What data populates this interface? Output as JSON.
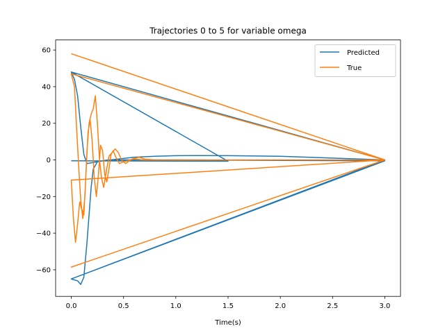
{
  "chart_data": {
    "type": "line",
    "title": "Trajectories 0 to 5 for variable omega",
    "xlabel": "Time(s)",
    "ylabel": "",
    "xlim": [
      -0.15,
      3.15
    ],
    "ylim": [
      -74.5,
      65.5
    ],
    "xticks": [
      0.0,
      0.5,
      1.0,
      1.5,
      2.0,
      2.5,
      3.0
    ],
    "xtick_labels": [
      "0.0",
      "0.5",
      "1.0",
      "1.5",
      "2.0",
      "2.5",
      "3.0"
    ],
    "yticks": [
      -60,
      -40,
      -20,
      0,
      20,
      40,
      60
    ],
    "ytick_labels": [
      "−60",
      "−40",
      "−20",
      "0",
      "20",
      "40",
      "60"
    ],
    "grid": false,
    "legend_position": "top-right",
    "colors": {
      "Predicted": "#1f77b4",
      "True": "#ff7f0e"
    },
    "series": [
      {
        "name": "Predicted",
        "color": "#1f77b4",
        "points": [
          [
            0.0,
            -0.5
          ],
          [
            1.5,
            -0.7
          ],
          [
            0.0,
            48.0
          ],
          [
            0.03,
            44.0
          ],
          [
            0.06,
            35.0
          ],
          [
            0.09,
            18.0
          ],
          [
            0.12,
            3.0
          ],
          [
            0.15,
            -2.0
          ],
          [
            0.2,
            -1.5
          ],
          [
            0.3,
            -0.5
          ],
          [
            0.45,
            0.5
          ],
          [
            0.6,
            1.5
          ],
          [
            0.8,
            2.0
          ],
          [
            1.0,
            2.3
          ],
          [
            1.2,
            2.4
          ],
          [
            1.5,
            2.3
          ],
          [
            2.0,
            2.0
          ],
          [
            2.5,
            1.0
          ],
          [
            3.0,
            0.0
          ],
          [
            0.0,
            48.0
          ],
          [
            3.0,
            0.0
          ],
          [
            0.0,
            -65.0
          ],
          [
            0.06,
            -66.0
          ],
          [
            0.09,
            -68.0
          ],
          [
            0.12,
            -64.0
          ],
          [
            0.15,
            -45.0
          ],
          [
            0.17,
            -30.0
          ],
          [
            0.19,
            -15.0
          ],
          [
            0.21,
            -5.0
          ],
          [
            0.25,
            -1.0
          ],
          [
            0.35,
            0.0
          ],
          [
            0.5,
            0.0
          ],
          [
            1.0,
            0.0
          ],
          [
            2.0,
            -0.3
          ],
          [
            3.0,
            -0.5
          ],
          [
            0.0,
            -65.0
          ],
          [
            3.0,
            -0.5
          ]
        ]
      },
      {
        "name": "True",
        "color": "#ff7f0e",
        "points": [
          [
            0.0,
            58.0
          ],
          [
            3.0,
            0.0
          ],
          [
            0.0,
            -58.5
          ],
          [
            3.0,
            0.0
          ],
          [
            0.0,
            -11.0
          ],
          [
            0.02,
            -32.0
          ],
          [
            0.04,
            -45.0
          ],
          [
            0.06,
            -35.0
          ],
          [
            0.08,
            -23.0
          ],
          [
            0.1,
            -27.0
          ],
          [
            0.12,
            -30.0
          ],
          [
            0.14,
            -8.0
          ],
          [
            0.16,
            15.0
          ],
          [
            0.18,
            22.0
          ],
          [
            0.2,
            10.0
          ],
          [
            0.22,
            -10.0
          ],
          [
            0.24,
            -20.0
          ],
          [
            0.26,
            -8.0
          ],
          [
            0.28,
            8.0
          ],
          [
            0.3,
            5.0
          ],
          [
            0.32,
            -8.0
          ],
          [
            0.34,
            -12.0
          ],
          [
            0.36,
            -5.0
          ],
          [
            0.38,
            3.0
          ],
          [
            0.4,
            5.0
          ],
          [
            0.43,
            1.0
          ],
          [
            0.46,
            -2.0
          ],
          [
            0.5,
            -1.0
          ],
          [
            0.6,
            0.5
          ],
          [
            0.7,
            0.0
          ],
          [
            1.0,
            0.0
          ],
          [
            2.0,
            0.0
          ],
          [
            3.0,
            0.0
          ],
          [
            0.0,
            47.0
          ],
          [
            0.03,
            40.0
          ],
          [
            0.05,
            18.0
          ],
          [
            0.07,
            -3.0
          ],
          [
            0.09,
            -22.0
          ],
          [
            0.11,
            -32.0
          ],
          [
            0.13,
            -20.0
          ],
          [
            0.15,
            5.0
          ],
          [
            0.17,
            20.0
          ],
          [
            0.19,
            25.0
          ],
          [
            0.21,
            28.0
          ],
          [
            0.23,
            35.0
          ],
          [
            0.25,
            20.0
          ],
          [
            0.27,
            0.0
          ],
          [
            0.29,
            -10.0
          ],
          [
            0.31,
            -15.0
          ],
          [
            0.33,
            -8.0
          ],
          [
            0.36,
            2.0
          ],
          [
            0.39,
            4.0
          ],
          [
            0.42,
            6.0
          ],
          [
            0.45,
            4.0
          ],
          [
            0.48,
            0.0
          ],
          [
            0.52,
            -2.0
          ],
          [
            0.58,
            0.5
          ],
          [
            0.65,
            1.5
          ],
          [
            0.7,
            0.5
          ],
          [
            0.8,
            0.0
          ],
          [
            1.0,
            0.0
          ],
          [
            3.0,
            0.0
          ]
        ]
      }
    ]
  }
}
